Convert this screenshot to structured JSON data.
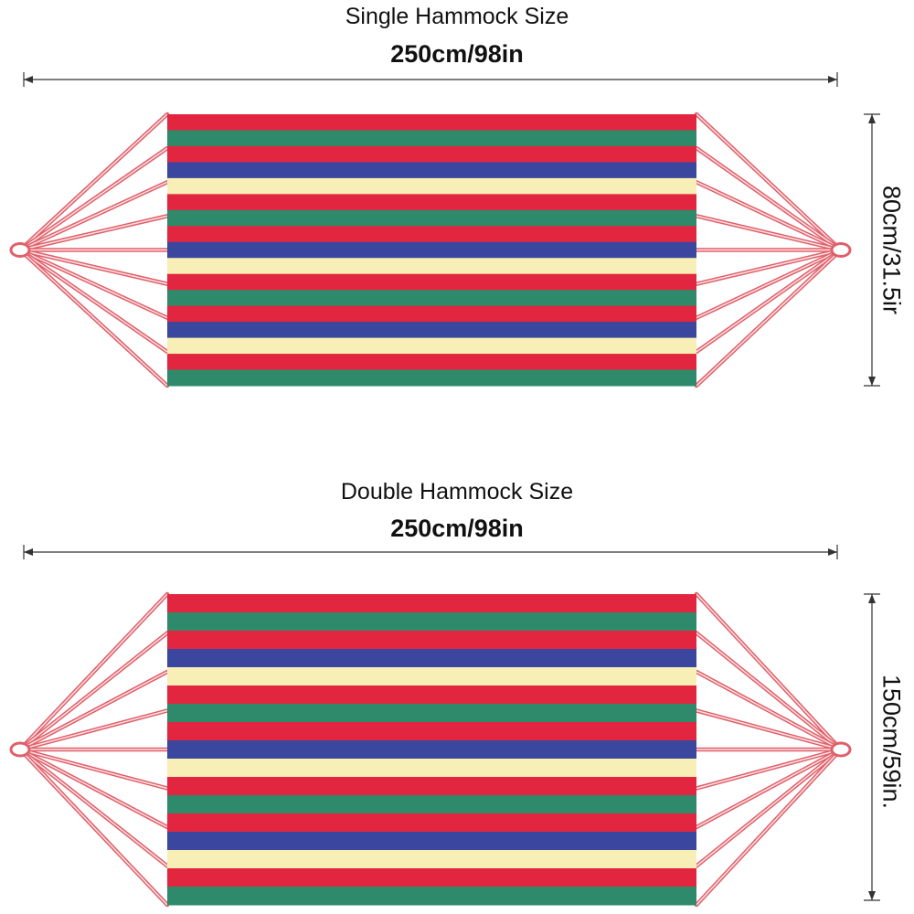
{
  "colors": {
    "red": "#e3263f",
    "green": "#2e8a6a",
    "blue": "#3b479e",
    "cream": "#f7efb5",
    "rope": "#e0606a",
    "line": "#333333"
  },
  "single": {
    "title": "Single Hammock Size",
    "width_label": "250cm/98in",
    "height_label": "80cm/31.5ir",
    "stripes": [
      "red",
      "green",
      "red",
      "blue",
      "cream",
      "red",
      "green",
      "red",
      "blue",
      "cream",
      "red",
      "green",
      "red",
      "blue",
      "cream",
      "red",
      "green"
    ]
  },
  "double": {
    "title": "Double Hammock Size",
    "width_label": "250cm/98in",
    "height_label": "150cm/59in.",
    "stripes": [
      "red",
      "green",
      "red",
      "blue",
      "cream",
      "red",
      "green",
      "red",
      "blue",
      "cream",
      "red",
      "green",
      "red",
      "blue",
      "cream",
      "red",
      "green"
    ]
  }
}
